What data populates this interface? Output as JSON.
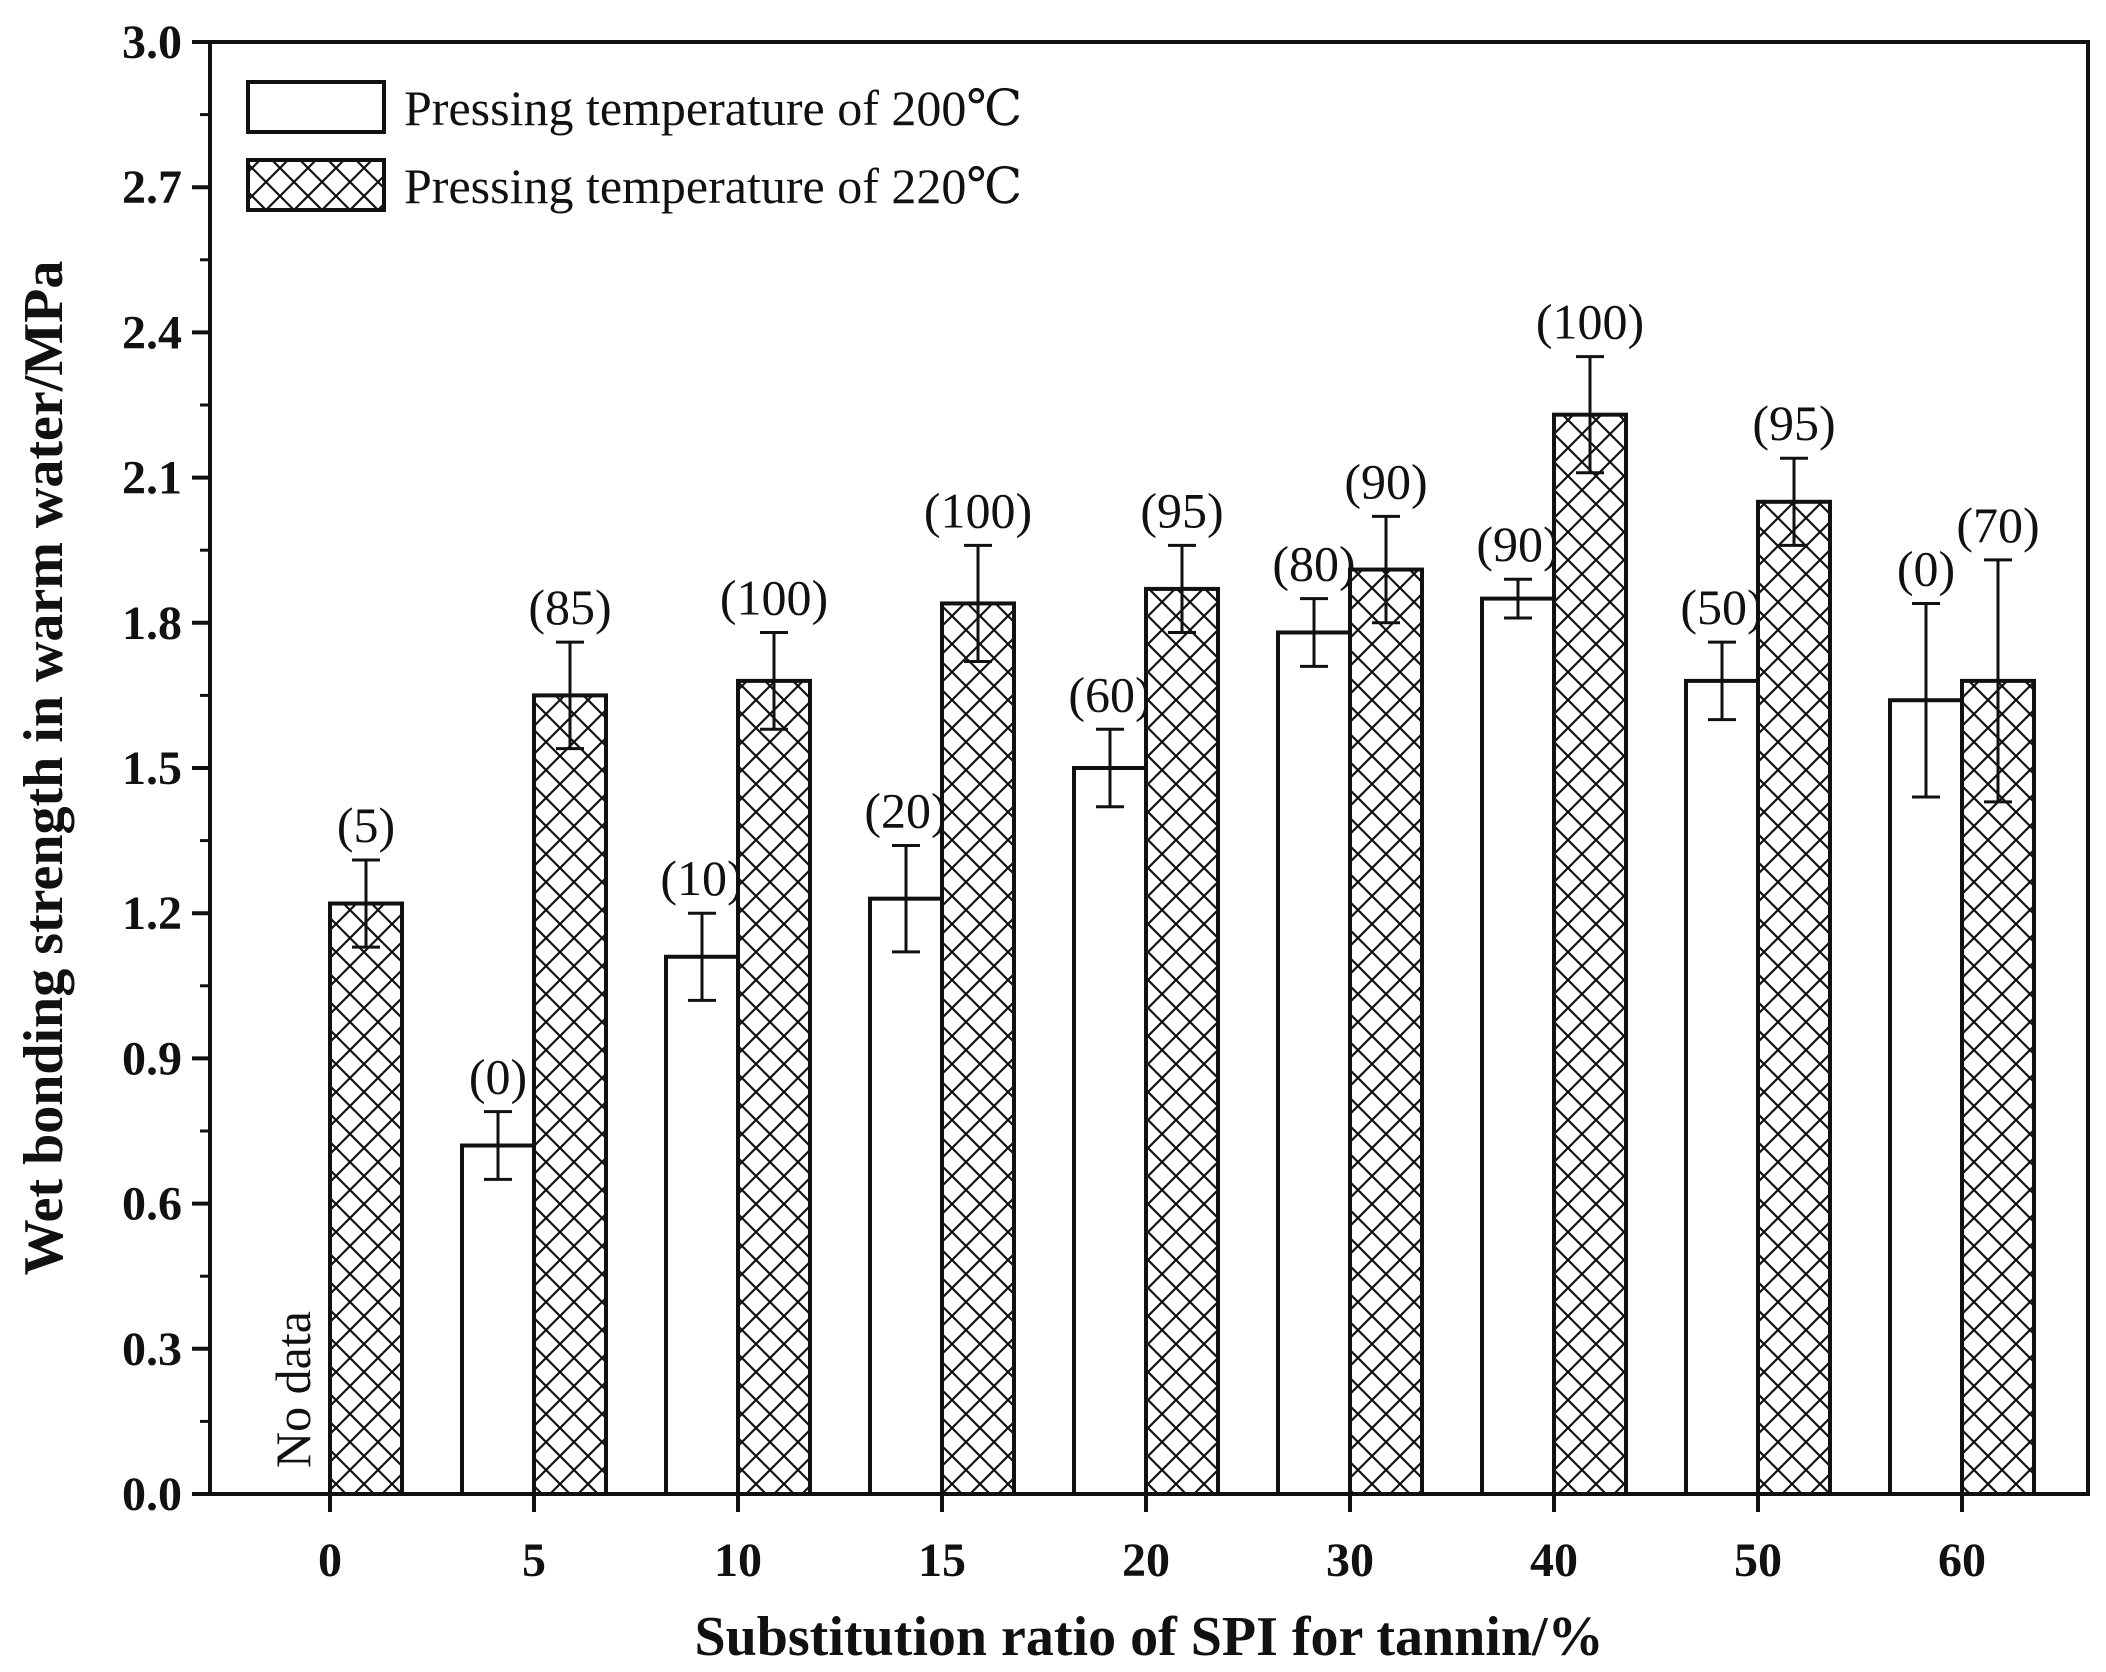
{
  "chart_data": {
    "type": "bar",
    "title": "",
    "xlabel": "Substitution ratio of SPI for tannin/%",
    "ylabel": "Wet bonding strength in warm water/MPa",
    "ylim": [
      0,
      3.0
    ],
    "yticks": [
      "0.0",
      "0.3",
      "0.6",
      "0.9",
      "1.2",
      "1.5",
      "1.8",
      "2.1",
      "2.4",
      "2.7",
      "3.0"
    ],
    "categories": [
      "0",
      "5",
      "10",
      "15",
      "20",
      "30",
      "40",
      "50",
      "60"
    ],
    "legend_position": "top-left",
    "series": [
      {
        "name": "Pressing temperature of 200℃",
        "pattern": "none",
        "values": [
          null,
          0.72,
          1.11,
          1.23,
          1.5,
          1.78,
          1.85,
          1.68,
          1.64
        ],
        "errors": [
          null,
          0.07,
          0.09,
          0.11,
          0.08,
          0.07,
          0.04,
          0.08,
          0.2
        ],
        "labels": [
          null,
          "(0)",
          "(10)",
          "(20)",
          "(60)",
          "(80)",
          "(90)",
          "(50)",
          "(0)"
        ]
      },
      {
        "name": "Pressing temperature of 220℃",
        "pattern": "crosshatch",
        "values": [
          1.22,
          1.65,
          1.68,
          1.84,
          1.87,
          1.91,
          2.23,
          2.05,
          1.68
        ],
        "errors": [
          0.09,
          0.11,
          0.1,
          0.12,
          0.09,
          0.11,
          0.12,
          0.09,
          0.25
        ],
        "labels": [
          "(5)",
          "(85)",
          "(100)",
          "(100)",
          "(95)",
          "(90)",
          "(100)",
          "(95)",
          "(70)"
        ]
      }
    ],
    "annotations": [
      {
        "text": "No data",
        "category": "0",
        "series": 0
      }
    ]
  }
}
